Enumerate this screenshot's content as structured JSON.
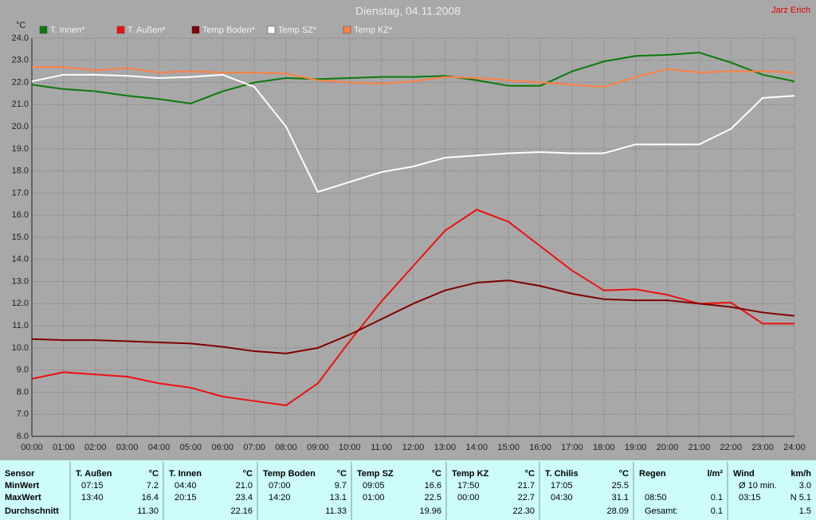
{
  "chart_data": {
    "type": "line",
    "title": "Dienstag, 04.11.2008",
    "author": "Jarz Erich",
    "y_label": "°C",
    "x": [
      0,
      1,
      2,
      3,
      4,
      5,
      6,
      7,
      8,
      9,
      10,
      11,
      12,
      13,
      14,
      15,
      16,
      17,
      18,
      19,
      20,
      21,
      22,
      23,
      24
    ],
    "xlim": [
      0,
      24
    ],
    "xticks": [
      {
        "value": 0,
        "label": "00:00"
      },
      {
        "value": 1,
        "label": "01:00"
      },
      {
        "value": 2,
        "label": "02:00"
      },
      {
        "value": 3,
        "label": "03:00"
      },
      {
        "value": 4,
        "label": "04:00"
      },
      {
        "value": 5,
        "label": "05:00"
      },
      {
        "value": 6,
        "label": "06:00"
      },
      {
        "value": 7,
        "label": "07:00"
      },
      {
        "value": 8,
        "label": "08:00"
      },
      {
        "value": 9,
        "label": "09:00"
      },
      {
        "value": 10,
        "label": "10:00"
      },
      {
        "value": 11,
        "label": "11:00"
      },
      {
        "value": 12,
        "label": "12:00"
      },
      {
        "value": 13,
        "label": "13:00"
      },
      {
        "value": 14,
        "label": "14:00"
      },
      {
        "value": 15,
        "label": "15:00"
      },
      {
        "value": 16,
        "label": "16:00"
      },
      {
        "value": 17,
        "label": "17:00"
      },
      {
        "value": 18,
        "label": "18:00"
      },
      {
        "value": 19,
        "label": "19:00"
      },
      {
        "value": 20,
        "label": "20:00"
      },
      {
        "value": 21,
        "label": "21:00"
      },
      {
        "value": 22,
        "label": "22:00"
      },
      {
        "value": 23,
        "label": "23:00"
      },
      {
        "value": 24,
        "label": "24:00"
      }
    ],
    "ylim": [
      6,
      24
    ],
    "yticks": [
      {
        "value": 6,
        "label": "6.0"
      },
      {
        "value": 7,
        "label": "7.0"
      },
      {
        "value": 8,
        "label": "8.0"
      },
      {
        "value": 9,
        "label": "9.0"
      },
      {
        "value": 10,
        "label": "10.0"
      },
      {
        "value": 11,
        "label": "11.0"
      },
      {
        "value": 12,
        "label": "12.0"
      },
      {
        "value": 13,
        "label": "13.0"
      },
      {
        "value": 14,
        "label": "14.0"
      },
      {
        "value": 15,
        "label": "15.0"
      },
      {
        "value": 16,
        "label": "16.0"
      },
      {
        "value": 17,
        "label": "17.0"
      },
      {
        "value": 18,
        "label": "18.0"
      },
      {
        "value": 19,
        "label": "19.0"
      },
      {
        "value": 20,
        "label": "20.0"
      },
      {
        "value": 21,
        "label": "21.0"
      },
      {
        "value": 22,
        "label": "22.0"
      },
      {
        "value": 23,
        "label": "23.0"
      },
      {
        "value": 24,
        "label": "24.0"
      }
    ],
    "grid": true,
    "series": [
      {
        "name": "T. Innen*",
        "color": "#0a7a0a",
        "values": [
          21.9,
          21.7,
          21.6,
          21.4,
          21.25,
          21.05,
          21.6,
          22.0,
          22.2,
          22.15,
          22.2,
          22.25,
          22.25,
          22.3,
          22.1,
          21.85,
          21.85,
          22.5,
          22.95,
          23.2,
          23.25,
          23.35,
          22.9,
          22.35,
          22.05
        ]
      },
      {
        "name": "T. Außen*",
        "color": "#ee1010",
        "values": [
          8.6,
          8.9,
          8.8,
          8.7,
          8.4,
          8.2,
          7.8,
          7.6,
          7.4,
          8.4,
          10.3,
          12.1,
          13.7,
          15.3,
          16.25,
          15.7,
          14.6,
          13.5,
          12.6,
          12.65,
          12.4,
          12.0,
          12.05,
          11.1,
          11.1
        ]
      },
      {
        "name": "Temp Boden*",
        "color": "#800000",
        "values": [
          10.4,
          10.35,
          10.35,
          10.3,
          10.25,
          10.2,
          10.05,
          9.85,
          9.75,
          10.0,
          10.6,
          11.3,
          12.0,
          12.6,
          12.95,
          13.05,
          12.8,
          12.45,
          12.2,
          12.15,
          12.15,
          12.0,
          11.85,
          11.6,
          11.45
        ]
      },
      {
        "name": "Temp SZ*",
        "color": "#ffffff",
        "values": [
          22.05,
          22.35,
          22.35,
          22.3,
          22.2,
          22.25,
          22.35,
          21.8,
          20.0,
          17.05,
          17.5,
          17.95,
          18.2,
          18.6,
          18.7,
          18.8,
          18.85,
          18.8,
          18.8,
          19.2,
          19.2,
          19.2,
          19.9,
          21.3,
          21.4
        ]
      },
      {
        "name": "Temp KZ*",
        "color": "#ff8040",
        "values": [
          22.7,
          22.7,
          22.55,
          22.65,
          22.45,
          22.5,
          22.45,
          22.45,
          22.4,
          22.1,
          22.0,
          21.95,
          22.05,
          22.25,
          22.2,
          22.1,
          22.0,
          21.9,
          21.8,
          22.25,
          22.6,
          22.45,
          22.5,
          22.5,
          22.45
        ]
      }
    ]
  },
  "table": {
    "row_labels": [
      "Sensor",
      "MinWert",
      "MaxWert",
      "Durchschnitt"
    ],
    "columns": [
      {
        "name": "T. Außen",
        "unit": "°C",
        "rows": [
          [
            "07:15",
            "7.2"
          ],
          [
            "13:40",
            "16.4"
          ],
          [
            "11.30"
          ]
        ]
      },
      {
        "name": "T. Innen",
        "unit": "°C",
        "rows": [
          [
            "04:40",
            "21.0"
          ],
          [
            "20:15",
            "23.4"
          ],
          [
            "22.16"
          ]
        ]
      },
      {
        "name": "Temp Boden",
        "unit": "°C",
        "rows": [
          [
            "07:00",
            "9.7"
          ],
          [
            "14:20",
            "13.1"
          ],
          [
            "11.33"
          ]
        ]
      },
      {
        "name": "Temp SZ",
        "unit": "°C",
        "rows": [
          [
            "09:05",
            "16.6"
          ],
          [
            "01:00",
            "22.5"
          ],
          [
            "19.96"
          ]
        ]
      },
      {
        "name": "Temp KZ",
        "unit": "°C",
        "rows": [
          [
            "17:50",
            "21.7"
          ],
          [
            "00:00",
            "22.7"
          ],
          [
            "22.30"
          ]
        ]
      },
      {
        "name": "T. Chilis",
        "unit": "°C",
        "rows": [
          [
            "17:05",
            "25.5"
          ],
          [
            "04:30",
            "31.1"
          ],
          [
            "28.09"
          ]
        ]
      },
      {
        "name": "Regen",
        "unit": "l/m²",
        "rows": [
          [],
          [
            "08:50",
            "0.1"
          ],
          [
            "Gesamt:",
            "0.1"
          ]
        ]
      },
      {
        "name": "Wind",
        "unit": "km/h",
        "rows": [
          [
            "Ø 10 min.",
            "3.0"
          ],
          [
            "03:15",
            "N 5.1"
          ],
          [
            "1.5"
          ]
        ]
      }
    ]
  }
}
